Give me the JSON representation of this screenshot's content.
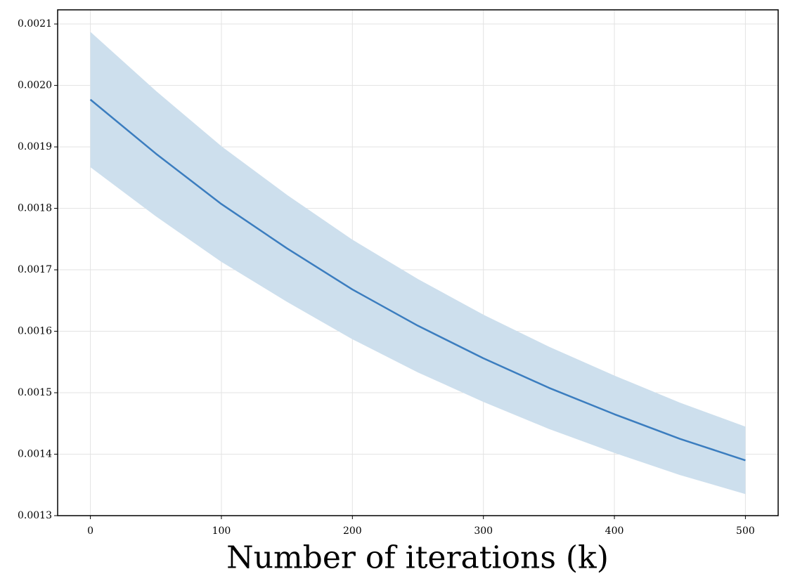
{
  "chart_data": {
    "type": "line",
    "xlabel": "Number of iterations (k)",
    "x": [
      0,
      50,
      100,
      150,
      200,
      250,
      300,
      350,
      400,
      450,
      500
    ],
    "series": [
      {
        "color": "#3b7dbf",
        "values": [
          0.001977,
          0.001889,
          0.001807,
          0.001735,
          0.001668,
          0.001609,
          0.001556,
          0.001508,
          0.001465,
          0.001425,
          0.00139
        ]
      }
    ],
    "band": {
      "color": "#cddfed",
      "upper": [
        0.002086,
        0.00199,
        0.0019,
        0.001821,
        0.001748,
        0.001684,
        0.001626,
        0.001574,
        0.001527,
        0.001483,
        0.001444
      ],
      "lower": [
        0.001868,
        0.001788,
        0.001714,
        0.001649,
        0.001588,
        0.001534,
        0.001486,
        0.001442,
        0.001403,
        0.001367,
        0.001336
      ]
    },
    "xlim": [
      -25,
      525
    ],
    "ylim": [
      0.0013,
      0.002123
    ],
    "xticks": [
      0,
      100,
      200,
      300,
      400,
      500
    ],
    "yticks": [
      0.0013,
      0.0014,
      0.0015,
      0.0016,
      0.0017,
      0.0018,
      0.0019,
      {
        "value": 0.002,
        "label": "0.0020"
      },
      0.0021
    ],
    "grid": true
  }
}
